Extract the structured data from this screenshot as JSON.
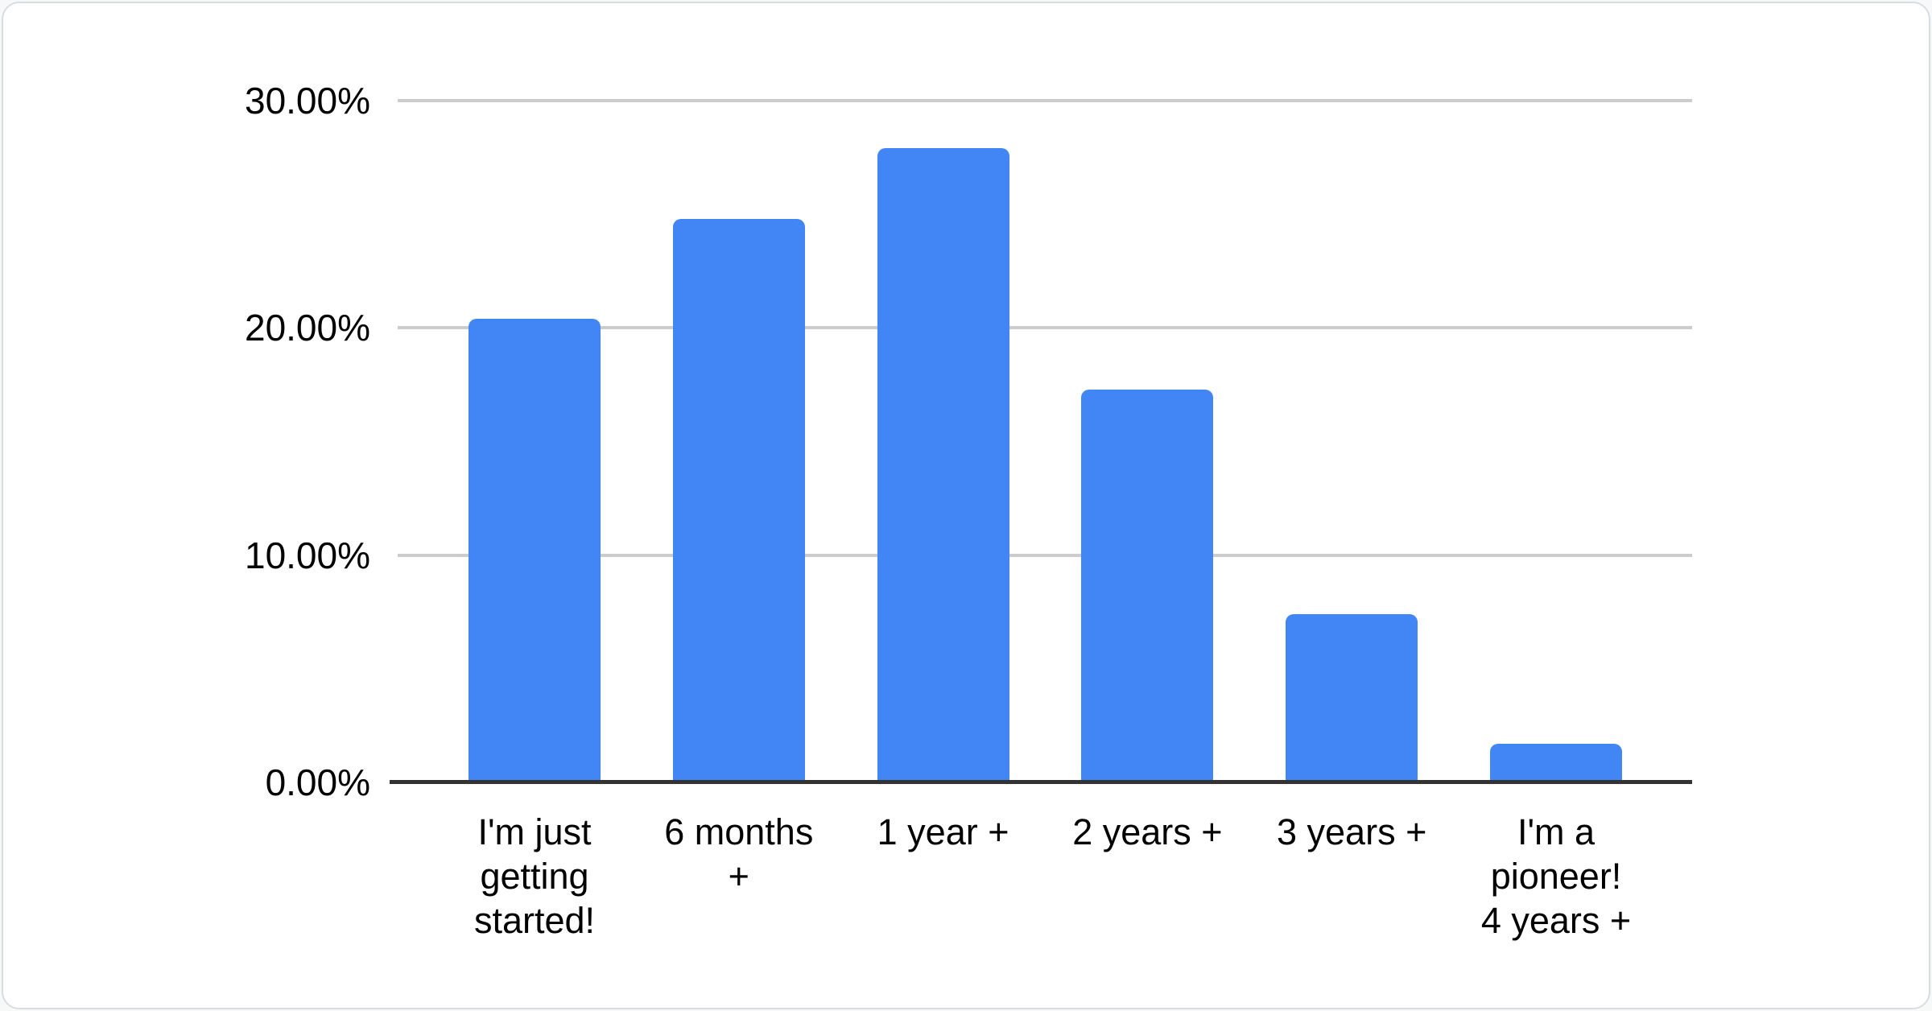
{
  "card": {
    "background": "#ffffff",
    "border_color": "#d9dde1"
  },
  "chart_data": {
    "type": "bar",
    "title": "",
    "xlabel": "",
    "ylabel": "",
    "categories": [
      "I'm just getting started!",
      "6 months +",
      "1 year +",
      "2 years +",
      "3 years +",
      "I'm a pioneer! 4 years +"
    ],
    "category_display": [
      "I'm just\ngetting\nstarted!",
      "6 months\n+",
      "1 year +",
      "2 years +",
      "3 years +",
      "I'm a\npioneer!\n4 years +"
    ],
    "values": [
      20.4,
      24.8,
      27.9,
      17.3,
      7.4,
      1.7
    ],
    "unit": "%",
    "ylim": [
      0,
      30
    ],
    "y_ticks": [
      "30.00%",
      "20.00%",
      "10.00%",
      "0.00%"
    ],
    "y_tick_values": [
      30,
      20,
      10,
      0
    ],
    "grid": true,
    "legend": "none",
    "bar_color": "#4285f4",
    "gridline_color": "#cccccc",
    "axis_line_color": "#333333",
    "label_color": "#000000"
  }
}
